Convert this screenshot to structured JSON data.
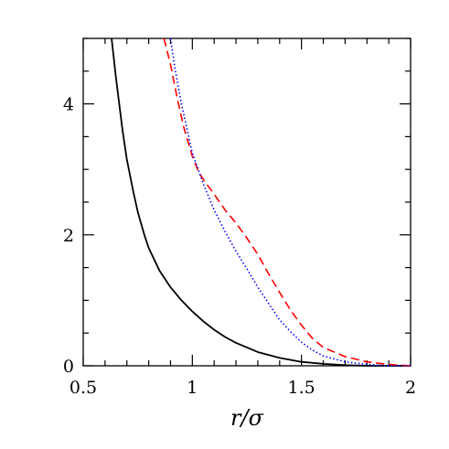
{
  "chart_data": {
    "type": "line",
    "title": "",
    "xlabel": "r/σ",
    "ylabel": "",
    "xlim": [
      0.5,
      2
    ],
    "ylim": [
      0,
      5
    ],
    "x_ticks": [
      0.5,
      1,
      1.5,
      2
    ],
    "x_tick_labels": [
      "0.5",
      "1",
      "1.5",
      "2"
    ],
    "y_ticks": [
      0,
      2,
      4
    ],
    "y_tick_labels": [
      "0",
      "2",
      "4"
    ],
    "grid": false,
    "legend": "none",
    "series": [
      {
        "style": "solid",
        "color": "#000000",
        "x": [
          0.63,
          0.65,
          0.68,
          0.7,
          0.73,
          0.75,
          0.78,
          0.8,
          0.85,
          0.9,
          0.95,
          1.0,
          1.05,
          1.1,
          1.15,
          1.2,
          1.3,
          1.4,
          1.5,
          1.6,
          1.7,
          1.8,
          1.9,
          2.0
        ],
        "y": [
          5.0,
          4.4,
          3.6,
          3.15,
          2.65,
          2.35,
          2.0,
          1.8,
          1.45,
          1.2,
          1.0,
          0.83,
          0.68,
          0.55,
          0.44,
          0.35,
          0.21,
          0.12,
          0.06,
          0.03,
          0.01,
          0.0,
          0.0,
          0.0
        ]
      },
      {
        "style": "dashed",
        "color": "#ff0000",
        "x": [
          0.87,
          0.9,
          0.93,
          0.96,
          1.0,
          1.03,
          1.06,
          1.1,
          1.15,
          1.2,
          1.25,
          1.3,
          1.35,
          1.4,
          1.45,
          1.5,
          1.55,
          1.6,
          1.7,
          1.8,
          1.9,
          2.0
        ],
        "y": [
          5.0,
          4.6,
          4.1,
          3.65,
          3.2,
          2.95,
          2.8,
          2.62,
          2.38,
          2.18,
          1.95,
          1.7,
          1.4,
          1.12,
          0.85,
          0.62,
          0.42,
          0.28,
          0.14,
          0.06,
          0.02,
          0.0
        ]
      },
      {
        "style": "dotted",
        "color": "#0000ff",
        "x": [
          0.9,
          0.92,
          0.95,
          0.98,
          1.0,
          1.05,
          1.1,
          1.15,
          1.2,
          1.25,
          1.3,
          1.35,
          1.4,
          1.45,
          1.5,
          1.55,
          1.6,
          1.7,
          1.8,
          1.9,
          2.0
        ],
        "y": [
          5.0,
          4.55,
          4.0,
          3.55,
          3.25,
          2.78,
          2.38,
          2.05,
          1.75,
          1.48,
          1.2,
          0.95,
          0.7,
          0.52,
          0.36,
          0.24,
          0.15,
          0.06,
          0.02,
          0.0,
          0.0
        ]
      }
    ]
  }
}
